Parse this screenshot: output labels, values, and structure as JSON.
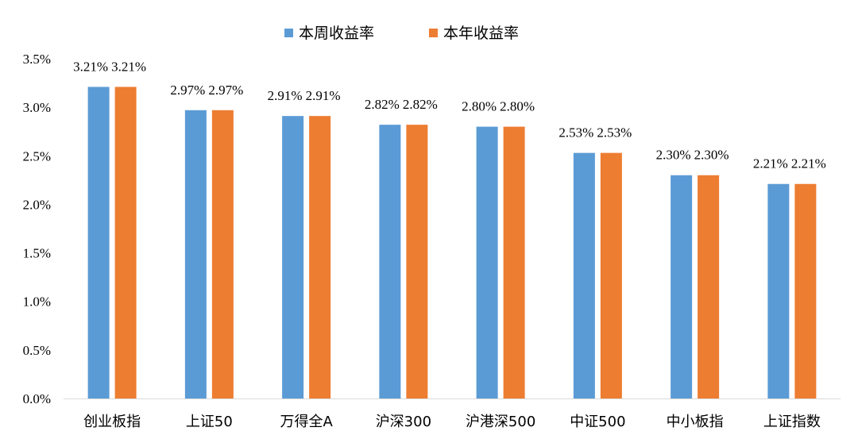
{
  "chart_data": {
    "type": "bar",
    "categories": [
      "创业板指",
      "上证50",
      "万得全A",
      "沪深300",
      "沪港深500",
      "中证500",
      "中小板指",
      "上证指数"
    ],
    "series": [
      {
        "name": "本周收益率",
        "color": "#5B9BD5",
        "values": [
          3.21,
          2.97,
          2.91,
          2.82,
          2.8,
          2.53,
          2.3,
          2.21
        ],
        "labels": [
          "3.21%",
          "2.97%",
          "2.91%",
          "2.82%",
          "2.80%",
          "2.53%",
          "2.30%",
          "2.21%"
        ]
      },
      {
        "name": "本年收益率",
        "color": "#ED7D31",
        "values": [
          3.21,
          2.97,
          2.91,
          2.82,
          2.8,
          2.53,
          2.3,
          2.21
        ],
        "labels": [
          "3.21%",
          "2.97%",
          "2.91%",
          "2.82%",
          "2.80%",
          "2.53%",
          "2.30%",
          "2.21%"
        ]
      }
    ],
    "ylim": [
      0,
      3.5
    ],
    "yticks": [
      0,
      0.5,
      1.0,
      1.5,
      2.0,
      2.5,
      3.0,
      3.5
    ],
    "ytick_labels": [
      "0.0%",
      "0.5%",
      "1.0%",
      "1.5%",
      "2.0%",
      "2.5%",
      "3.0%",
      "3.5%"
    ],
    "title": "",
    "xlabel": "",
    "ylabel": "",
    "grid": false,
    "legend_position": "top-center"
  }
}
